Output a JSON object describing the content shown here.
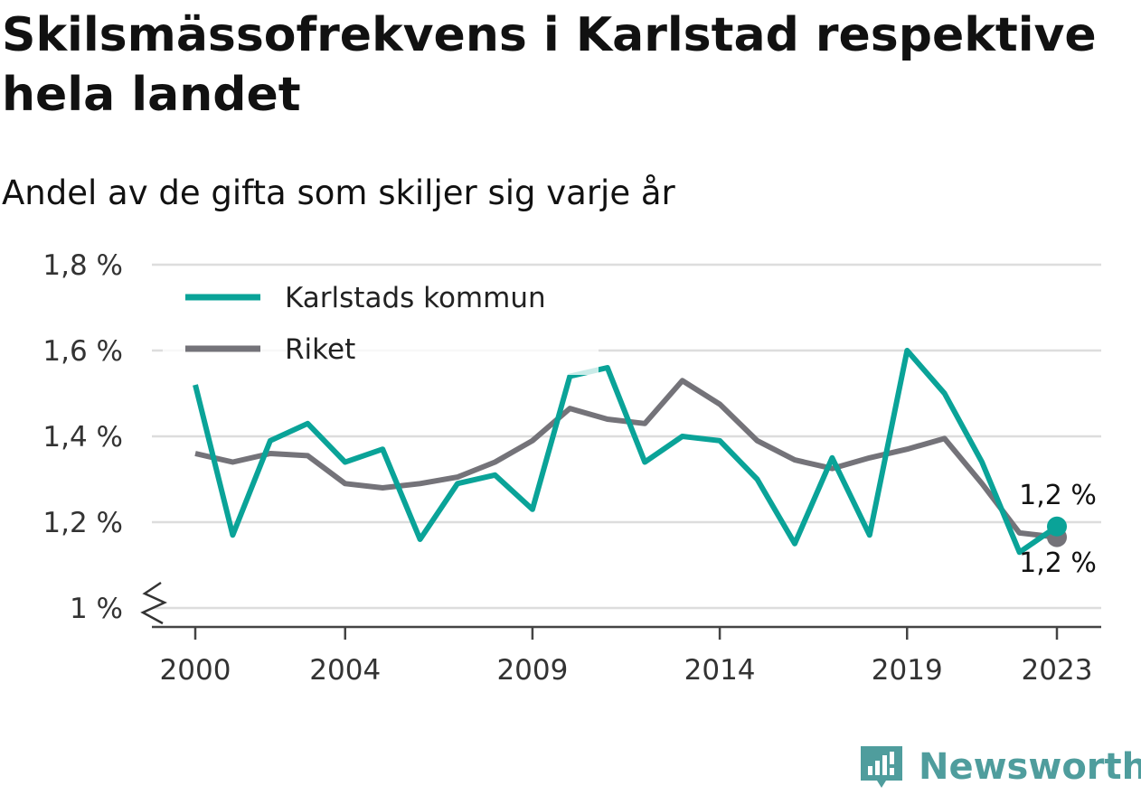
{
  "title": "Skilsmässofrekvens i Karlstad respektive hela landet",
  "subtitle": "Andel av de gifta som skiljer sig varje år",
  "brand": {
    "name": "Newsworthy",
    "icon": "bar-chart-speech-bubble-icon",
    "color": "#4f9d9d"
  },
  "chart_data": {
    "type": "line",
    "x": [
      2000,
      2001,
      2002,
      2003,
      2004,
      2005,
      2006,
      2007,
      2008,
      2009,
      2010,
      2011,
      2012,
      2013,
      2014,
      2015,
      2016,
      2017,
      2018,
      2019,
      2020,
      2021,
      2022,
      2023
    ],
    "xticks": [
      2000,
      2004,
      2009,
      2014,
      2019,
      2023
    ],
    "xtick_labels": [
      "2000",
      "2004",
      "2009",
      "2014",
      "2019",
      "2023"
    ],
    "ylim": [
      1.0,
      1.8
    ],
    "yticks": [
      1.0,
      1.2,
      1.4,
      1.6,
      1.8
    ],
    "ytick_labels": [
      "1 %",
      "1,2 %",
      "1,4 %",
      "1,6 %",
      "1,8 %"
    ],
    "axis_break": true,
    "grid": true,
    "legend_position": "top-left",
    "series": [
      {
        "name": "Karlstads kommun",
        "color": "#0aa398",
        "values": [
          1.52,
          1.17,
          1.39,
          1.43,
          1.34,
          1.37,
          1.16,
          1.29,
          1.31,
          1.23,
          1.54,
          1.56,
          1.34,
          1.4,
          1.39,
          1.3,
          1.15,
          1.35,
          1.17,
          1.6,
          1.5,
          1.34,
          1.13,
          1.19
        ],
        "end_label": "1,2 %"
      },
      {
        "name": "Riket",
        "color": "#747379",
        "values": [
          1.36,
          1.34,
          1.36,
          1.355,
          1.29,
          1.28,
          1.29,
          1.305,
          1.34,
          1.39,
          1.465,
          1.44,
          1.43,
          1.53,
          1.475,
          1.39,
          1.345,
          1.325,
          1.35,
          1.37,
          1.395,
          1.29,
          1.175,
          1.165
        ],
        "end_label": "1,2 %"
      }
    ]
  }
}
